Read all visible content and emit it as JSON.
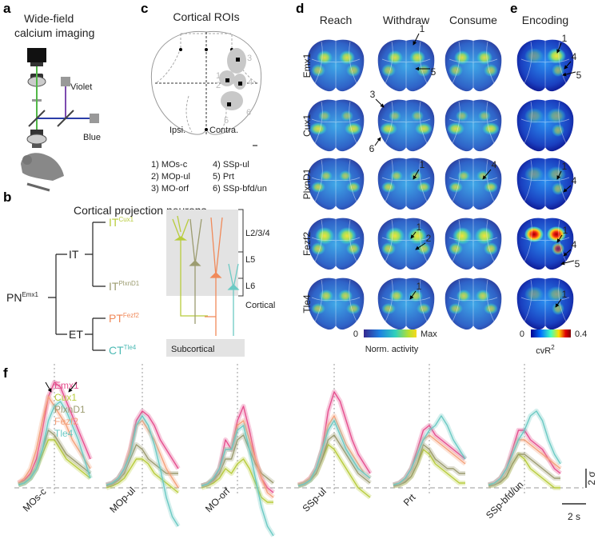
{
  "a": {
    "label": "a",
    "title": [
      "Wide-field",
      "calcium imaging"
    ],
    "violet": "Violet",
    "blue": "Blue"
  },
  "b": {
    "label": "b",
    "title": "Cortical projection neurons",
    "root": {
      "text": "PN",
      "sup": "Emx1"
    },
    "it": "IT",
    "et": "ET",
    "leaves": [
      {
        "text": "IT",
        "sup": "Cux1"
      },
      {
        "text": "IT",
        "sup": "PlxnD1"
      },
      {
        "text": "PT",
        "sup": "Fezf2"
      },
      {
        "text": "CT",
        "sup": "Tle4"
      }
    ],
    "layers": [
      "L2/3/4",
      "L5",
      "L6"
    ],
    "cortical": "Cortical",
    "subcortical": "Subcortical"
  },
  "c": {
    "label": "c",
    "title": "Cortical ROIs",
    "map_numbers": [
      "3",
      "1",
      "2",
      "4",
      "5",
      "6"
    ],
    "ipsi": "Ipsi.",
    "contra": "Contra.",
    "rois": [
      "1) MOs-c",
      "2) MOp-ul",
      "3) MO-orf",
      "4) SSp-ul",
      "5) Prt",
      "6) SSp-bfd/un"
    ]
  },
  "d": {
    "label": "d",
    "columns": [
      "Reach",
      "Withdraw",
      "Consume"
    ],
    "rows": [
      "Emx1",
      "Cux1",
      "PlxnD1",
      "Fezf2",
      "Tle4"
    ],
    "annotations": [
      "1",
      "5",
      "3",
      "6",
      "1",
      "4",
      "1",
      "2",
      "1"
    ],
    "colorbar": {
      "min": "0",
      "max": "Max",
      "label": "Norm. activity"
    }
  },
  "e": {
    "label": "e",
    "title": "Encoding",
    "annotations": [
      "1",
      "4",
      "5",
      "1",
      "4",
      "1",
      "4",
      "5",
      "1"
    ],
    "colorbar": {
      "min": "0",
      "max": "0.4",
      "label": "cvR",
      "sup": "2"
    }
  },
  "f": {
    "label": "f",
    "t": [
      -3,
      -2.5,
      -2,
      -1.5,
      -1,
      -0.5,
      0,
      0.5,
      1,
      1.5,
      2,
      2.5,
      3
    ],
    "series": [
      {
        "name": "Emx1",
        "color": "#e6508f"
      },
      {
        "name": "Cux1",
        "color": "#b8cc3c"
      },
      {
        "name": "PlxnD1",
        "color": "#9c9c70"
      },
      {
        "name": "Fezf2",
        "color": "#f4a27c"
      },
      {
        "name": "Tle4",
        "color": "#6ccac4"
      }
    ],
    "rois": [
      {
        "label": "MOs-c",
        "traces": [
          [
            0.5,
            0.8,
            1.5,
            3,
            6,
            9.5,
            11,
            10.5,
            9,
            7.5,
            6,
            4.5,
            3
          ],
          [
            0.3,
            0.5,
            1,
            2,
            3.5,
            5,
            5,
            4,
            3,
            2.5,
            2,
            1.5,
            1
          ],
          [
            0.3,
            0.5,
            1,
            2,
            4,
            6,
            5.5,
            4.5,
            3.5,
            3,
            2.5,
            2,
            1.5
          ],
          [
            0.5,
            1,
            2,
            4,
            7,
            9.5,
            8.5,
            7.5,
            6.5,
            5,
            4,
            3,
            2
          ],
          [
            0.3,
            0.5,
            1,
            2,
            4,
            7,
            8.5,
            9,
            8,
            6.5,
            5,
            3,
            1
          ]
        ]
      },
      {
        "label": "MOp-ul",
        "traces": [
          [
            0.3,
            0.5,
            1,
            2,
            4,
            7,
            8,
            7.5,
            6.5,
            5,
            4,
            3,
            2
          ],
          [
            0,
            0.2,
            0.5,
            1,
            2,
            3,
            3,
            2.5,
            1.5,
            1,
            0.5,
            0,
            -0.5
          ],
          [
            0.2,
            0.4,
            0.8,
            1.5,
            3,
            4.5,
            4,
            3,
            2.5,
            2,
            1.5,
            1.5,
            1.5
          ],
          [
            0.3,
            0.5,
            1,
            2,
            4,
            6.5,
            7,
            6,
            5,
            3.5,
            2,
            1,
            0
          ],
          [
            0.3,
            0.5,
            1,
            2,
            3.5,
            6.5,
            7.5,
            6.5,
            4.5,
            2,
            -1,
            -3,
            -4
          ]
        ]
      },
      {
        "label": "MO-orf",
        "traces": [
          [
            0.2,
            0.4,
            0.8,
            2,
            5,
            4,
            7,
            8.5,
            6,
            3,
            1,
            0,
            -0.5
          ],
          [
            0,
            0.2,
            0.5,
            1,
            2,
            1.5,
            2.5,
            3,
            2,
            0.5,
            -1,
            -1.5,
            -1.5
          ],
          [
            0.2,
            0.4,
            0.8,
            1.5,
            3,
            3,
            5,
            5.5,
            4,
            2.5,
            1.5,
            1,
            0.5
          ],
          [
            0.2,
            0.4,
            1,
            2,
            4,
            4,
            6.5,
            7,
            5,
            3,
            1,
            -0.5,
            -1
          ],
          [
            0.2,
            0.4,
            1,
            2,
            4,
            4,
            6,
            6.5,
            4,
            1,
            -2,
            -4,
            -5
          ]
        ]
      },
      {
        "label": "SSp-ul",
        "traces": [
          [
            0.3,
            0.5,
            1,
            2,
            4,
            8,
            10,
            9,
            7,
            5,
            3.5,
            2.5,
            1.5
          ],
          [
            0.2,
            0.4,
            0.8,
            1.5,
            3,
            4.5,
            4,
            3,
            2,
            1,
            0,
            -0.5,
            -1
          ],
          [
            0.2,
            0.4,
            0.8,
            1.5,
            3,
            5,
            5.5,
            4.5,
            3.5,
            2.5,
            1.5,
            1,
            0.5
          ],
          [
            0.3,
            0.5,
            1,
            2,
            4,
            6.5,
            7.5,
            6,
            4.5,
            3.5,
            2.5,
            1.5,
            1
          ],
          [
            0.2,
            0.4,
            0.8,
            2,
            4,
            6,
            7,
            5.5,
            4,
            3,
            2,
            1.5,
            1
          ]
        ]
      },
      {
        "label": "Prt",
        "traces": [
          [
            0.3,
            0.5,
            1,
            2,
            4,
            6,
            6.5,
            5.5,
            5,
            4.5,
            4,
            3.5,
            3
          ],
          [
            0.2,
            0.3,
            0.6,
            1.2,
            2.5,
            4,
            3.5,
            2.5,
            2,
            1.5,
            1,
            0.5,
            0.5
          ],
          [
            0.2,
            0.3,
            0.6,
            1.2,
            2.5,
            4.5,
            4,
            3,
            2.5,
            2,
            2,
            1.5,
            1.5
          ],
          [
            0.3,
            0.5,
            1,
            2,
            3.5,
            5,
            5.5,
            5,
            4.5,
            4,
            3.5,
            3,
            2.5
          ],
          [
            0.3,
            0.5,
            1,
            2,
            3.5,
            5,
            6,
            6.5,
            7.5,
            6.5,
            5,
            4,
            3
          ]
        ]
      },
      {
        "label": "SSp-bfd/un",
        "traces": [
          [
            0.3,
            0.5,
            1,
            2,
            4,
            6,
            6,
            5,
            4.5,
            4,
            3,
            2,
            1.5
          ],
          [
            0.2,
            0.3,
            0.6,
            1.2,
            2.5,
            3.5,
            3,
            2,
            1.5,
            1,
            0.5,
            0,
            0
          ],
          [
            0.2,
            0.3,
            0.6,
            1.2,
            2.5,
            3.5,
            3.5,
            3,
            2.5,
            2,
            1.5,
            1,
            1
          ],
          [
            0.3,
            0.5,
            1,
            2,
            3.5,
            5,
            5,
            4.5,
            4,
            3.5,
            3,
            2.5,
            2
          ],
          [
            0.3,
            0.5,
            1,
            2,
            3.5,
            5,
            6,
            7.5,
            8,
            7,
            5,
            3.5,
            2.5
          ]
        ]
      }
    ],
    "scale": {
      "y": {
        "value": 2,
        "label": "2 σ"
      },
      "x": {
        "value": 2,
        "label": "2 s"
      }
    }
  }
}
